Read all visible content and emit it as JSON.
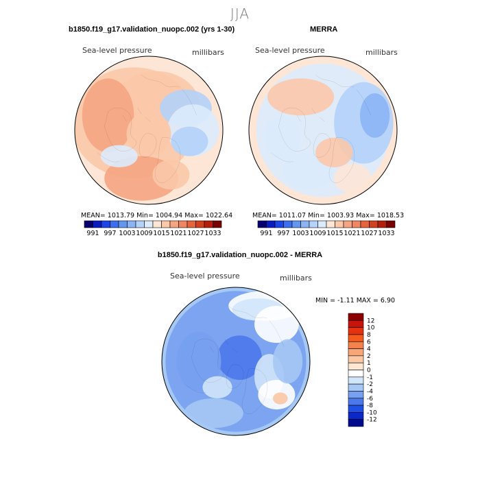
{
  "page": {
    "season": "JJA",
    "panel_model_title": "b1850.f19_g17.validation_nuopc.002 (yrs 1-30)",
    "panel_obs_title": "MERRA",
    "panel_diff_title": "b1850.f19_g17.validation_nuopc.002 - MERRA"
  },
  "panels": {
    "model": {
      "variable": "Sea-level pressure",
      "units": "millibars",
      "stats": "MEAN= 1013.79   Min= 1004.94   Max= 1022.64"
    },
    "obs": {
      "variable": "Sea-level pressure",
      "units": "millibars",
      "stats": "MEAN= 1011.07   Min= 1003.93   Max= 1018.53"
    },
    "diff": {
      "variable": "Sea-level pressure",
      "units": "millibars",
      "stats": "MIN =   -1.11  MAX =     6.90"
    }
  },
  "chart_data": [
    {
      "type": "heatmap",
      "title": "b1850.f19_g17.validation_nuopc.002 (yrs 1-30)",
      "variable": "Sea-level pressure",
      "units": "millibars",
      "projection": "north polar stereographic",
      "mean": 1013.79,
      "min": 1004.94,
      "max": 1022.64,
      "colorbar": {
        "orientation": "horizontal",
        "tick_labels": [
          "991",
          "997",
          "1003",
          "1009",
          "1015",
          "1021",
          "1027",
          "1033"
        ],
        "colors": [
          "#08006e",
          "#0a1cc0",
          "#1e46e6",
          "#3c6ef0",
          "#6496f0",
          "#8cb4f5",
          "#b4d2fa",
          "#dcebfc",
          "#fde6d6",
          "#fbc8aa",
          "#f5a582",
          "#f08764",
          "#e6643c",
          "#d2411e",
          "#b41e0a",
          "#780000"
        ]
      }
    },
    {
      "type": "heatmap",
      "title": "MERRA",
      "variable": "Sea-level pressure",
      "units": "millibars",
      "projection": "north polar stereographic",
      "mean": 1011.07,
      "min": 1003.93,
      "max": 1018.53,
      "colorbar": {
        "orientation": "horizontal",
        "tick_labels": [
          "991",
          "997",
          "1003",
          "1009",
          "1015",
          "1021",
          "1027",
          "1033"
        ],
        "colors": [
          "#08006e",
          "#0a1cc0",
          "#1e46e6",
          "#3c6ef0",
          "#6496f0",
          "#8cb4f5",
          "#b4d2fa",
          "#dcebfc",
          "#fde6d6",
          "#fbc8aa",
          "#f5a582",
          "#f08764",
          "#e6643c",
          "#d2411e",
          "#b41e0a",
          "#780000"
        ]
      }
    },
    {
      "type": "heatmap",
      "title": "b1850.f19_g17.validation_nuopc.002 - MERRA",
      "variable": "Sea-level pressure",
      "units": "millibars",
      "projection": "north polar stereographic",
      "min": -1.11,
      "max": 6.9,
      "colorbar": {
        "orientation": "vertical",
        "tick_labels": [
          "12",
          "10",
          "8",
          "6",
          "4",
          "2",
          "1",
          "0",
          "-1",
          "-2",
          "-4",
          "-6",
          "-8",
          "-10",
          "-12"
        ],
        "colors": [
          "#8c0000",
          "#c8140a",
          "#e6320f",
          "#f55a1e",
          "#f5824b",
          "#f8a578",
          "#fac8a5",
          "#fde6d2",
          "#ffffff",
          "#d2e6fa",
          "#a5c8f5",
          "#78a0f0",
          "#4b78eb",
          "#1e50e6",
          "#0a28c8",
          "#000a8c"
        ]
      }
    }
  ]
}
